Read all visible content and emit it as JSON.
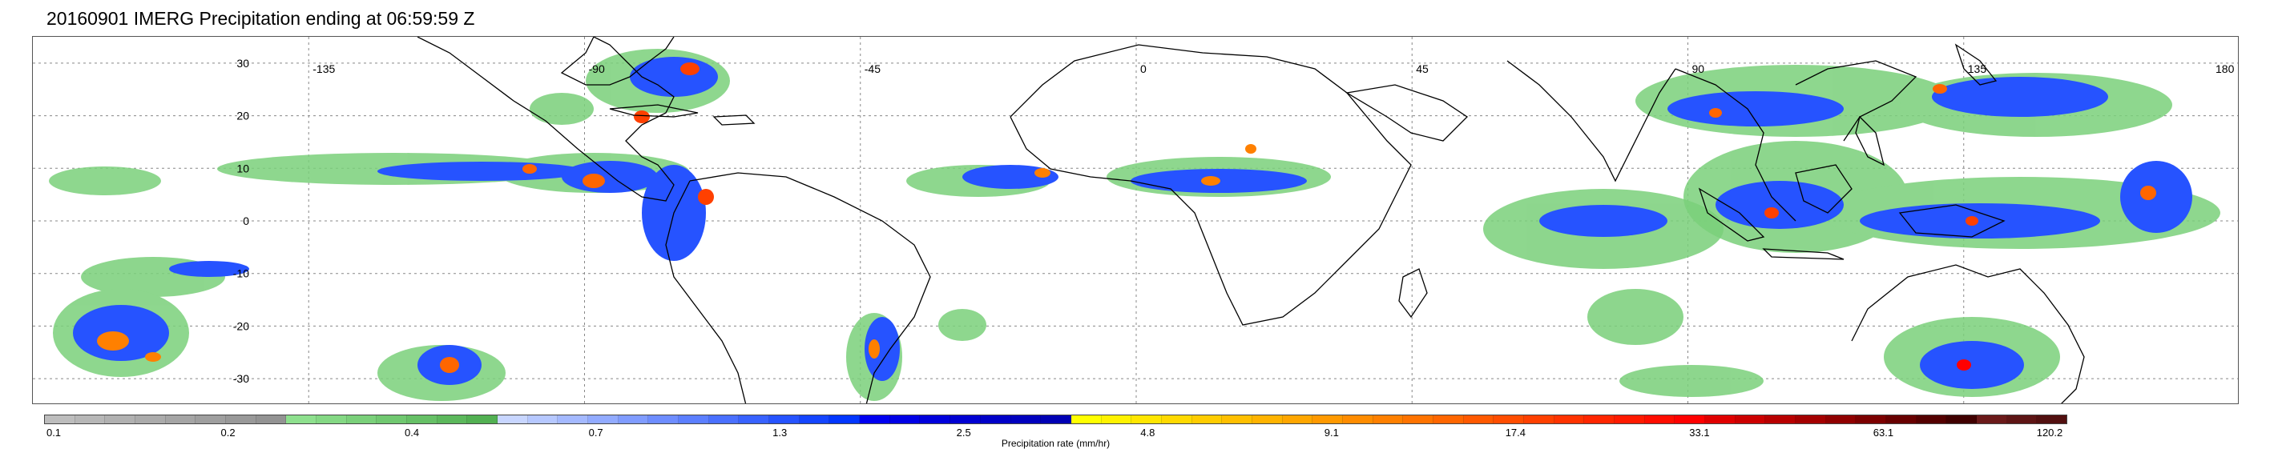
{
  "title": "20160901 IMERG Precipitation ending at 06:59:59 Z",
  "map": {
    "lon_labels": [
      "-135",
      "-90",
      "-45",
      "0",
      "45",
      "90",
      "135",
      "180"
    ],
    "lat_labels": [
      "30",
      "20",
      "10",
      "0",
      "-10",
      "-20",
      "-30"
    ],
    "lon_range": [
      -180,
      180
    ],
    "lat_range": [
      -35,
      35
    ],
    "gridlines": "dotted",
    "coastline_color": "#000000"
  },
  "colorbar": {
    "label": "Precipitation rate (mm/hr)",
    "tick_labels": [
      "0.1",
      "0.2",
      "0.4",
      "0.7",
      "1.3",
      "2.5",
      "4.8",
      "9.1",
      "17.4",
      "33.1",
      "63.1",
      "120.2"
    ],
    "colors": [
      "#bdbdbd",
      "#b7b7b7",
      "#b1b1b1",
      "#ababab",
      "#a5a5a5",
      "#9f9f9f",
      "#999999",
      "#939393",
      "#8ee08e",
      "#84d884",
      "#7ad07a",
      "#70c870",
      "#66c066",
      "#5cb85c",
      "#52b052",
      "#c8d6ff",
      "#b6c8ff",
      "#a4b9ff",
      "#92abff",
      "#809cff",
      "#6e8dff",
      "#5c7fff",
      "#4a70ff",
      "#3862ff",
      "#2653ff",
      "#1445ff",
      "#0236ff",
      "#0000f0",
      "#0000e6",
      "#0000dc",
      "#0000d2",
      "#0000c8",
      "#0000be",
      "#0000b4",
      "#ffff00",
      "#fff200",
      "#ffe600",
      "#ffd900",
      "#ffcc00",
      "#ffbf00",
      "#ffb300",
      "#ffa600",
      "#ff9900",
      "#ff8c00",
      "#ff8000",
      "#ff7300",
      "#ff6600",
      "#ff5900",
      "#ff4d00",
      "#ff4000",
      "#ff3300",
      "#ff2600",
      "#ff1a00",
      "#ff0d00",
      "#ff0000",
      "#e00000",
      "#cc0000",
      "#b80000",
      "#a40000",
      "#900000",
      "#7c0000",
      "#680000",
      "#540000",
      "#400000",
      "#6b1a1a",
      "#5e1515",
      "#521010"
    ]
  }
}
